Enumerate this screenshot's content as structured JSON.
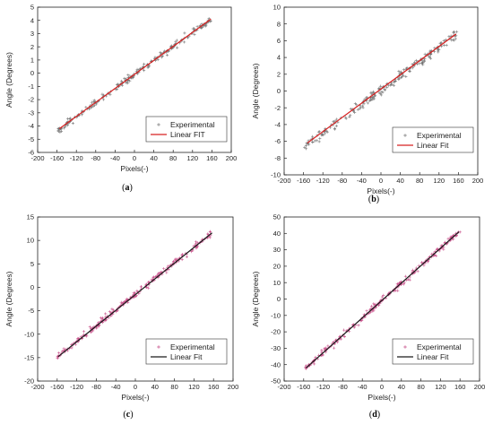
{
  "chart_data": [
    {
      "id": "a",
      "panel_label": "(a)",
      "type": "scatter",
      "xlabel": "Pixels(-)",
      "ylabel": "Angle (Degrees)",
      "xlim": [
        -200,
        200
      ],
      "ylim": [
        -6,
        5
      ],
      "xticks": [
        -200,
        -160,
        -120,
        -80,
        -40,
        0,
        40,
        80,
        120,
        160,
        200
      ],
      "yticks": [
        -6,
        -5,
        -4,
        -3,
        -2,
        -1,
        0,
        1,
        2,
        3,
        4,
        5
      ],
      "grid": false,
      "legend_position": "bottom-right",
      "series": [
        {
          "name": "Experimental",
          "kind": "scatter",
          "marker": "+",
          "color": "#777777",
          "x_range": [
            -158,
            158
          ],
          "slope": 0.0265,
          "intercept": -0.1,
          "spread": 0.22,
          "n_points": 220
        },
        {
          "name": "Linear FIT",
          "kind": "line",
          "color": "#d62020",
          "x": [
            -155,
            158
          ],
          "y": [
            -4.2,
            4.1
          ]
        }
      ]
    },
    {
      "id": "b",
      "panel_label": "(b)",
      "type": "scatter",
      "xlabel": "Pixels(-)",
      "ylabel": "Angle (Degrees)",
      "xlim": [
        -200,
        200
      ],
      "ylim": [
        -10,
        10
      ],
      "xticks": [
        -200,
        -160,
        -120,
        -80,
        -40,
        0,
        40,
        80,
        120,
        160,
        200
      ],
      "yticks": [
        -10,
        -8,
        -6,
        -4,
        -2,
        0,
        2,
        4,
        6,
        8,
        10
      ],
      "grid": false,
      "legend_position": "bottom-right",
      "series": [
        {
          "name": "Experimental",
          "kind": "scatter",
          "marker": "+",
          "color": "#777777",
          "x_range": [
            -158,
            158
          ],
          "slope": 0.0425,
          "intercept": 0.1,
          "spread": 0.45,
          "n_points": 220
        },
        {
          "name": "Linear Fit",
          "kind": "line",
          "color": "#d62020",
          "x": [
            -152,
            155
          ],
          "y": [
            -6.2,
            6.8
          ]
        }
      ]
    },
    {
      "id": "c",
      "panel_label": "(c)",
      "type": "scatter",
      "xlabel": "Pixels(-)",
      "ylabel": "Angle (Degrees)",
      "xlim": [
        -200,
        200
      ],
      "ylim": [
        -20,
        15
      ],
      "xticks": [
        -200,
        -160,
        -120,
        -80,
        -40,
        0,
        40,
        80,
        120,
        160,
        200
      ],
      "yticks": [
        -20,
        -15,
        -10,
        -5,
        0,
        5,
        10,
        15
      ],
      "grid": false,
      "legend_position": "bottom-right",
      "series": [
        {
          "name": "Experimental",
          "kind": "scatter",
          "marker": "+",
          "color": "#c8508a",
          "x_range": [
            -160,
            158
          ],
          "slope": 0.0835,
          "intercept": -1.5,
          "spread": 0.6,
          "n_points": 240
        },
        {
          "name": "Linear Fit",
          "kind": "line",
          "color": "#1a1a1a",
          "x": [
            -158,
            157
          ],
          "y": [
            -14.8,
            11.6
          ]
        }
      ]
    },
    {
      "id": "d",
      "panel_label": "(d)",
      "type": "scatter",
      "xlabel": "Pixels(-)",
      "ylabel": "Angle (Degrees)",
      "xlim": [
        -200,
        200
      ],
      "ylim": [
        -50,
        50
      ],
      "xticks": [
        -200,
        -160,
        -120,
        -80,
        -40,
        0,
        40,
        80,
        120,
        160,
        200
      ],
      "yticks": [
        -50,
        -40,
        -30,
        -20,
        -10,
        0,
        10,
        20,
        30,
        40,
        50
      ],
      "grid": false,
      "legend_position": "bottom-right",
      "series": [
        {
          "name": "Experimental",
          "kind": "scatter",
          "marker": "+",
          "color": "#c8508a",
          "x_range": [
            -158,
            160
          ],
          "slope": 0.265,
          "intercept": -1.0,
          "spread": 1.6,
          "n_points": 240
        },
        {
          "name": "Linear Fit",
          "kind": "line",
          "color": "#1a1a1a",
          "x": [
            -155,
            158
          ],
          "y": [
            -42,
            41
          ]
        }
      ]
    }
  ]
}
